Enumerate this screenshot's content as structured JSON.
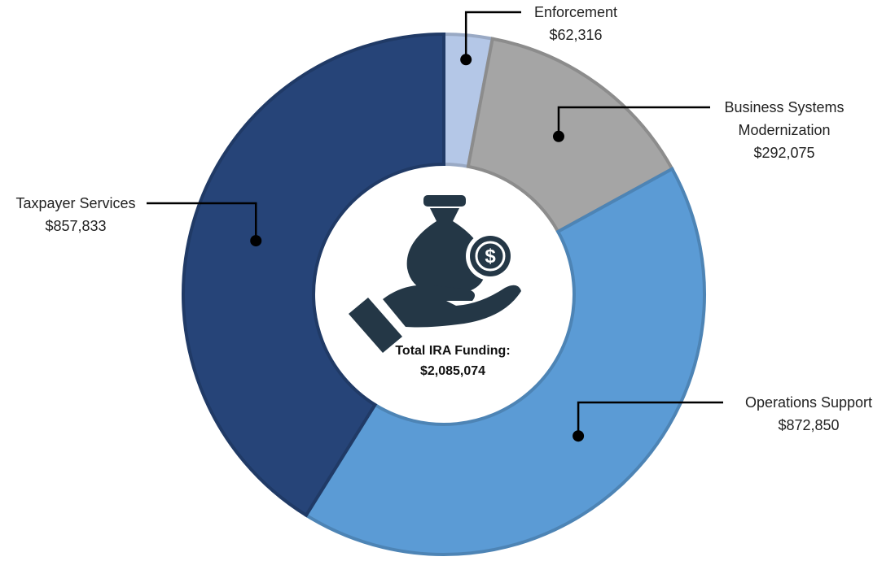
{
  "chart_data": {
    "type": "donut",
    "categories": [
      "Enforcement",
      "Business Systems Modernization",
      "Operations Support",
      "Taxpayer Services"
    ],
    "values": [
      62316,
      292075,
      872850,
      857833
    ],
    "value_labels": [
      "$62,316",
      "$292,075",
      "$872,850",
      "$857,833"
    ],
    "colors": [
      "#b4c7e7",
      "#a5a5a5",
      "#5b9bd5",
      "#264478"
    ],
    "center_text": "Total IRA Funding:",
    "total": 2085074,
    "total_label": "$2,085,074"
  }
}
